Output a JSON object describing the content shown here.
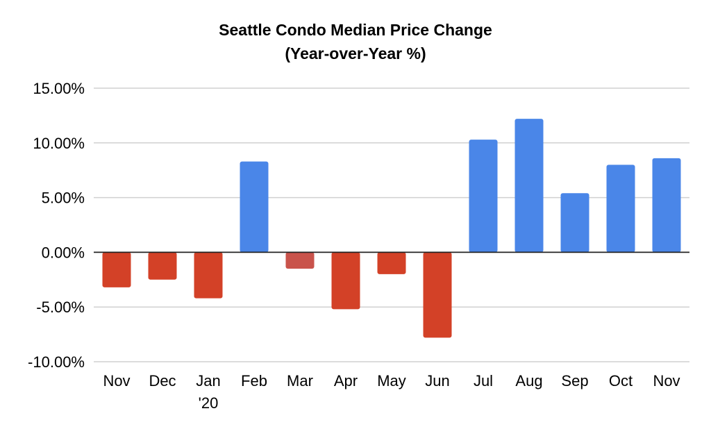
{
  "chart_data": {
    "type": "bar",
    "title": "Seattle Condo Median Price Change",
    "subtitle": "(Year-over-Year %)",
    "categories": [
      [
        "Nov"
      ],
      [
        "Dec"
      ],
      [
        "Jan",
        "'20"
      ],
      [
        "Feb"
      ],
      [
        "Mar"
      ],
      [
        "Apr"
      ],
      [
        "May"
      ],
      [
        "Jun"
      ],
      [
        "Jul"
      ],
      [
        "Aug"
      ],
      [
        "Sep"
      ],
      [
        "Oct"
      ],
      [
        "Nov"
      ]
    ],
    "series": [
      {
        "values": [
          -3.2,
          -2.5,
          -4.2,
          8.3,
          -1.5,
          -5.2,
          -2.0,
          -7.8,
          10.3,
          12.2,
          5.4,
          8.0,
          8.6
        ]
      }
    ],
    "bar_colors": [
      "#d34127",
      "#d34127",
      "#d34127",
      "#4a86e8",
      "#c9534b",
      "#d34127",
      "#d34127",
      "#d34127",
      "#4a86e8",
      "#4a86e8",
      "#4a86e8",
      "#4a86e8",
      "#4a86e8"
    ],
    "ylim": [
      -10,
      15
    ],
    "yticks": [
      15,
      10,
      5,
      0,
      -5,
      -10
    ],
    "ytick_labels": [
      "15.00%",
      "10.00%",
      "5.00%",
      "0.00%",
      "-5.00%",
      "-10.00%"
    ],
    "grid": true,
    "gridline_color": "#d0d0d0",
    "zero_line_color": "#222222",
    "legend": "none"
  }
}
